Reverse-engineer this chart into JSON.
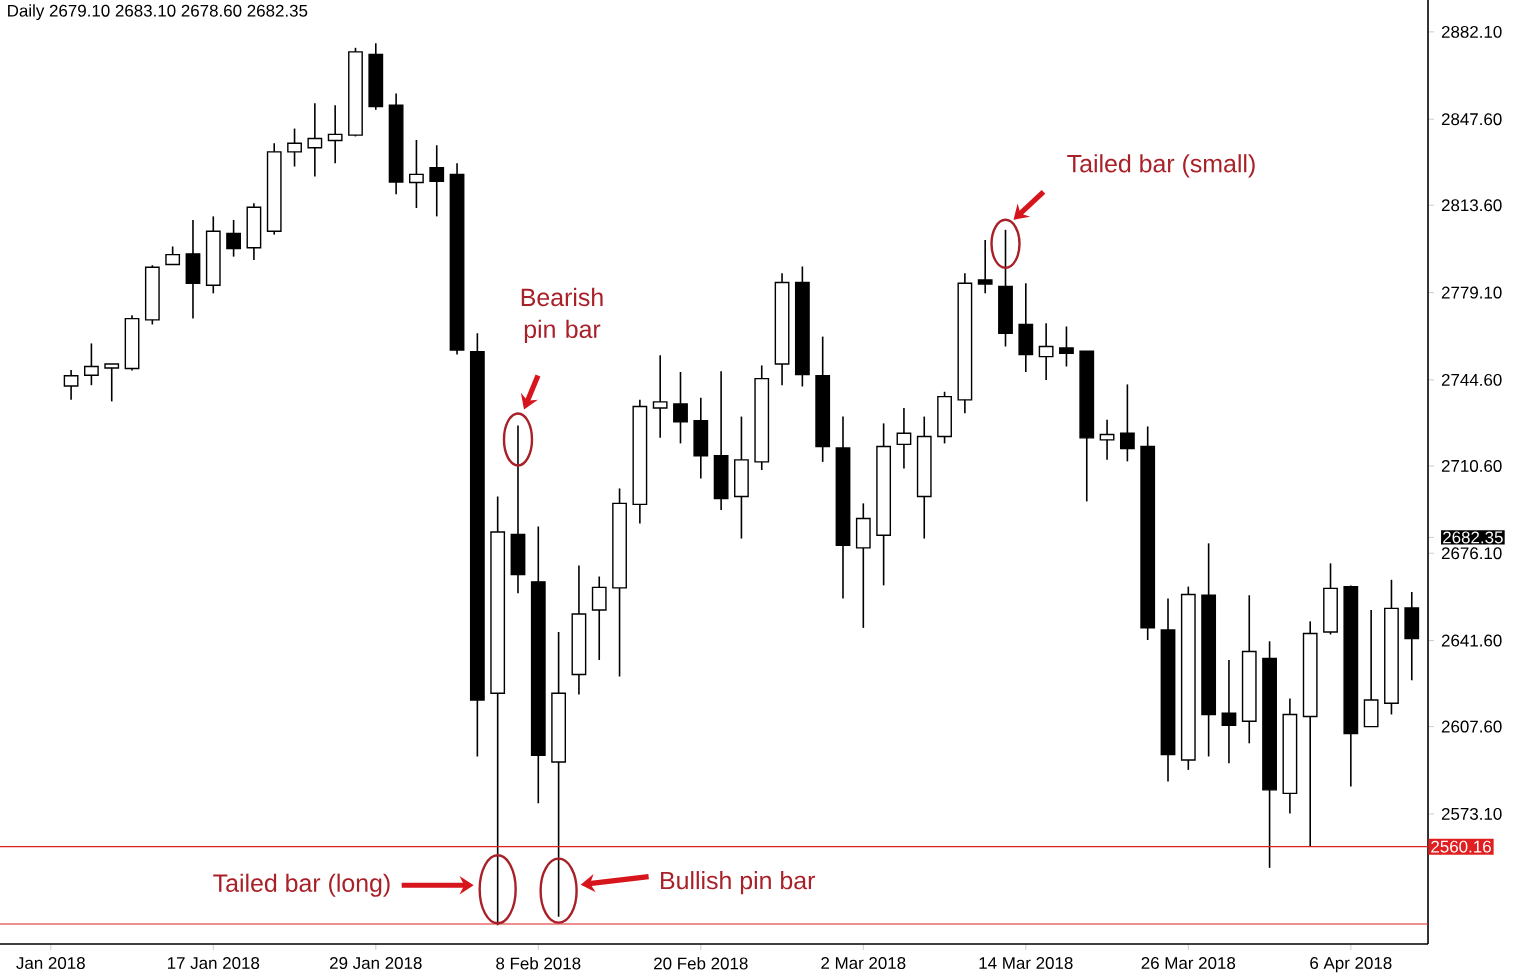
{
  "chart_data": {
    "type": "candlestick",
    "title": "Daily 2679.10 2683.10 2678.60 2682.35",
    "categories": [
      "Jan 2018",
      null,
      null,
      null,
      null,
      null,
      null,
      null,
      "17 Jan 2018",
      null,
      null,
      null,
      null,
      null,
      null,
      null,
      "29 Jan 2018",
      null,
      null,
      null,
      null,
      null,
      null,
      null,
      "8 Feb 2018",
      null,
      null,
      null,
      null,
      null,
      null,
      null,
      "20 Feb 2018",
      null,
      null,
      null,
      null,
      null,
      null,
      null,
      "2 Mar 2018",
      null,
      null,
      null,
      null,
      null,
      null,
      null,
      "14 Mar 2018",
      null,
      null,
      null,
      null,
      null,
      null,
      null,
      "26 Mar 2018",
      null,
      null,
      null,
      null,
      null,
      null,
      null,
      "6 Apr 2018",
      null,
      null,
      null
    ],
    "ohlc": [
      null,
      [
        2742.2,
        2748.5,
        2736.7,
        2746.2
      ],
      [
        2746.4,
        2759.0,
        2742.5,
        2749.9
      ],
      [
        2749.3,
        2750.9,
        2736.1,
        2750.9
      ],
      [
        2749.1,
        2770.1,
        2748.3,
        2768.8
      ],
      [
        2768.3,
        2789.9,
        2766.5,
        2789.1
      ],
      [
        2790.2,
        2797.3,
        2790.2,
        2794.1
      ],
      [
        2794.4,
        2807.8,
        2768.9,
        2782.8
      ],
      [
        2782.0,
        2809.2,
        2778.8,
        2803.3
      ],
      [
        2802.5,
        2807.8,
        2793.3,
        2796.5
      ],
      [
        2796.8,
        2814.4,
        2792.0,
        2812.8
      ],
      [
        2803.3,
        2838.1,
        2802.0,
        2834.7
      ],
      [
        2834.7,
        2843.9,
        2828.9,
        2838.1
      ],
      [
        2836.3,
        2853.9,
        2825.0,
        2840.0
      ],
      [
        2839.2,
        2853.1,
        2830.2,
        2841.6
      ],
      [
        2841.3,
        2875.8,
        2840.8,
        2874.2
      ],
      [
        2873.2,
        2877.6,
        2851.3,
        2852.6
      ],
      [
        2853.1,
        2857.8,
        2817.9,
        2822.8
      ],
      [
        2822.6,
        2839.4,
        2812.5,
        2825.8
      ],
      [
        2828.4,
        2837.3,
        2809.2,
        2823.1
      ],
      [
        2825.8,
        2830.2,
        2754.6,
        2756.4
      ],
      [
        2755.7,
        2763.0,
        2595.8,
        2618.1
      ],
      [
        2620.8,
        2698.5,
        2529.1,
        2684.5
      ],
      [
        2683.5,
        2726.6,
        2660.3,
        2667.7
      ],
      [
        2664.8,
        2686.7,
        2577.3,
        2596.3
      ],
      [
        2593.6,
        2645.0,
        2532.5,
        2620.8
      ],
      [
        2628.2,
        2671.3,
        2620.3,
        2652.1
      ],
      [
        2653.7,
        2666.9,
        2633.9,
        2662.6
      ],
      [
        2662.4,
        2701.7,
        2627.4,
        2695.8
      ],
      [
        2695.4,
        2736.7,
        2687.9,
        2734.1
      ],
      [
        2733.5,
        2754.3,
        2721.7,
        2735.9
      ],
      [
        2735.1,
        2747.7,
        2719.5,
        2728.0
      ],
      [
        2728.5,
        2737.5,
        2705.6,
        2714.6
      ],
      [
        2714.6,
        2748.0,
        2693.2,
        2697.7
      ],
      [
        2698.5,
        2730.1,
        2681.9,
        2713.0
      ],
      [
        2712.2,
        2750.3,
        2709.0,
        2745.1
      ],
      [
        2750.9,
        2786.7,
        2742.5,
        2783.1
      ],
      [
        2783.1,
        2789.4,
        2742.0,
        2746.7
      ],
      [
        2746.2,
        2761.7,
        2712.2,
        2718.3
      ],
      [
        2717.7,
        2730.1,
        2658.2,
        2679.2
      ],
      [
        2678.2,
        2695.8,
        2646.6,
        2689.8
      ],
      [
        2683.2,
        2727.4,
        2663.4,
        2718.3
      ],
      [
        2719.1,
        2733.5,
        2709.6,
        2723.5
      ],
      [
        2698.5,
        2730.1,
        2681.9,
        2722.2
      ],
      [
        2722.2,
        2739.9,
        2719.5,
        2738.0
      ],
      [
        2736.7,
        2786.7,
        2731.4,
        2782.8
      ],
      [
        2784.1,
        2799.9,
        2778.8,
        2782.5
      ],
      [
        2781.5,
        2803.9,
        2757.8,
        2763.0
      ],
      [
        2766.5,
        2782.8,
        2747.7,
        2754.6
      ],
      [
        2753.8,
        2767.0,
        2744.6,
        2757.8
      ],
      [
        2757.2,
        2765.7,
        2749.9,
        2755.1
      ],
      [
        2755.9,
        2755.9,
        2696.6,
        2721.7
      ],
      [
        2720.9,
        2728.8,
        2713.0,
        2723.0
      ],
      [
        2723.5,
        2742.8,
        2712.4,
        2717.5
      ],
      [
        2718.3,
        2726.2,
        2641.8,
        2646.6
      ],
      [
        2645.8,
        2658.2,
        2585.9,
        2596.6
      ],
      [
        2594.4,
        2662.9,
        2590.5,
        2659.8
      ],
      [
        2659.5,
        2680.0,
        2595.8,
        2612.4
      ],
      [
        2612.9,
        2633.9,
        2593.1,
        2608.1
      ],
      [
        2609.7,
        2659.5,
        2601.0,
        2637.3
      ],
      [
        2634.5,
        2641.3,
        2551.8,
        2582.6
      ],
      [
        2581.2,
        2618.7,
        2573.3,
        2612.4
      ],
      [
        2611.6,
        2649.2,
        2560.2,
        2644.4
      ],
      [
        2645.0,
        2672.1,
        2644.0,
        2662.2
      ],
      [
        2662.9,
        2663.4,
        2583.9,
        2604.9
      ],
      [
        2607.6,
        2653.7,
        2607.6,
        2618.1
      ],
      [
        2616.8,
        2665.6,
        2612.4,
        2654.3
      ],
      [
        2654.5,
        2660.8,
        2625.9,
        2642.4
      ]
    ],
    "ylim": [
      2521.7,
      2894.7
    ],
    "yticks": [
      {
        "value": 2573.1,
        "label": "2573.10"
      },
      {
        "value": 2607.6,
        "label": "2607.60"
      },
      {
        "value": 2641.6,
        "label": "2641.60"
      },
      {
        "value": 2676.1,
        "label": "2676.10"
      },
      {
        "value": 2682.35,
        "label": "2682.35"
      },
      {
        "value": 2710.6,
        "label": "2710.60"
      },
      {
        "value": 2744.6,
        "label": "2744.60"
      },
      {
        "value": 2779.1,
        "label": "2779.10"
      },
      {
        "value": 2813.6,
        "label": "2813.60"
      },
      {
        "value": 2847.6,
        "label": "2847.60"
      },
      {
        "value": 2882.1,
        "label": "2882.10"
      }
    ],
    "ref_lines": [
      {
        "axis": "y",
        "value": 2560.16,
        "label": "2560.16",
        "color": "#e02020"
      },
      {
        "axis": "y",
        "value": 2529.6,
        "color": "#e02020"
      }
    ],
    "annotations": [
      "Bearish pin bar",
      "Tailed bar (small)",
      "Tailed bar (long)",
      "Bullish pin bar"
    ]
  }
}
